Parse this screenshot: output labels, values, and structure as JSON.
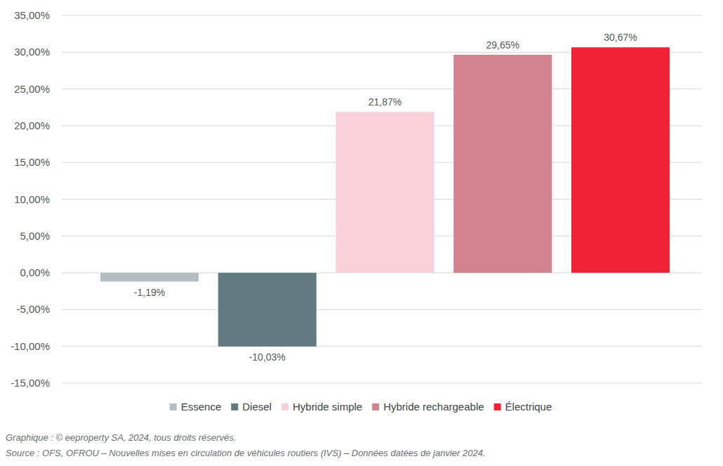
{
  "chart_data": {
    "type": "bar",
    "categories": [
      "Essence",
      "Diesel",
      "Hybride simple",
      "Hybride rechargeable",
      "Électrique"
    ],
    "values": [
      -1.19,
      -10.03,
      21.87,
      29.65,
      30.67
    ],
    "value_labels": [
      "-1,19%",
      "-10,03%",
      "21,87%",
      "29,65%",
      "30,67%"
    ],
    "colors": [
      "#b3bec3",
      "#627b83",
      "#f8d1d8",
      "#d0838f",
      "#f22236"
    ],
    "ylim": [
      -15,
      35
    ],
    "yticks": [
      {
        "value": -15,
        "label": "-15,00%"
      },
      {
        "value": -10,
        "label": "-10,00%"
      },
      {
        "value": -5,
        "label": "-5,00%"
      },
      {
        "value": 0,
        "label": "0,00%"
      },
      {
        "value": 5,
        "label": "5,00%"
      },
      {
        "value": 10,
        "label": "10,00%"
      },
      {
        "value": 15,
        "label": "15,00%"
      },
      {
        "value": 20,
        "label": "20,00%"
      },
      {
        "value": 25,
        "label": "25,00%"
      },
      {
        "value": 30,
        "label": "30,00%"
      },
      {
        "value": 35,
        "label": "35,00%"
      }
    ],
    "grid": true,
    "data_labels": true,
    "legend": "bottom",
    "tick_labels": "y",
    "annotations": [
      "Graphique : © eeproperty SA, 2024, tous droits réservés.",
      "Source : OFS, OFROU – Nouvelles mises en circulation de véhicules routiers (IVS) – Données datées de janvier 2024."
    ]
  }
}
